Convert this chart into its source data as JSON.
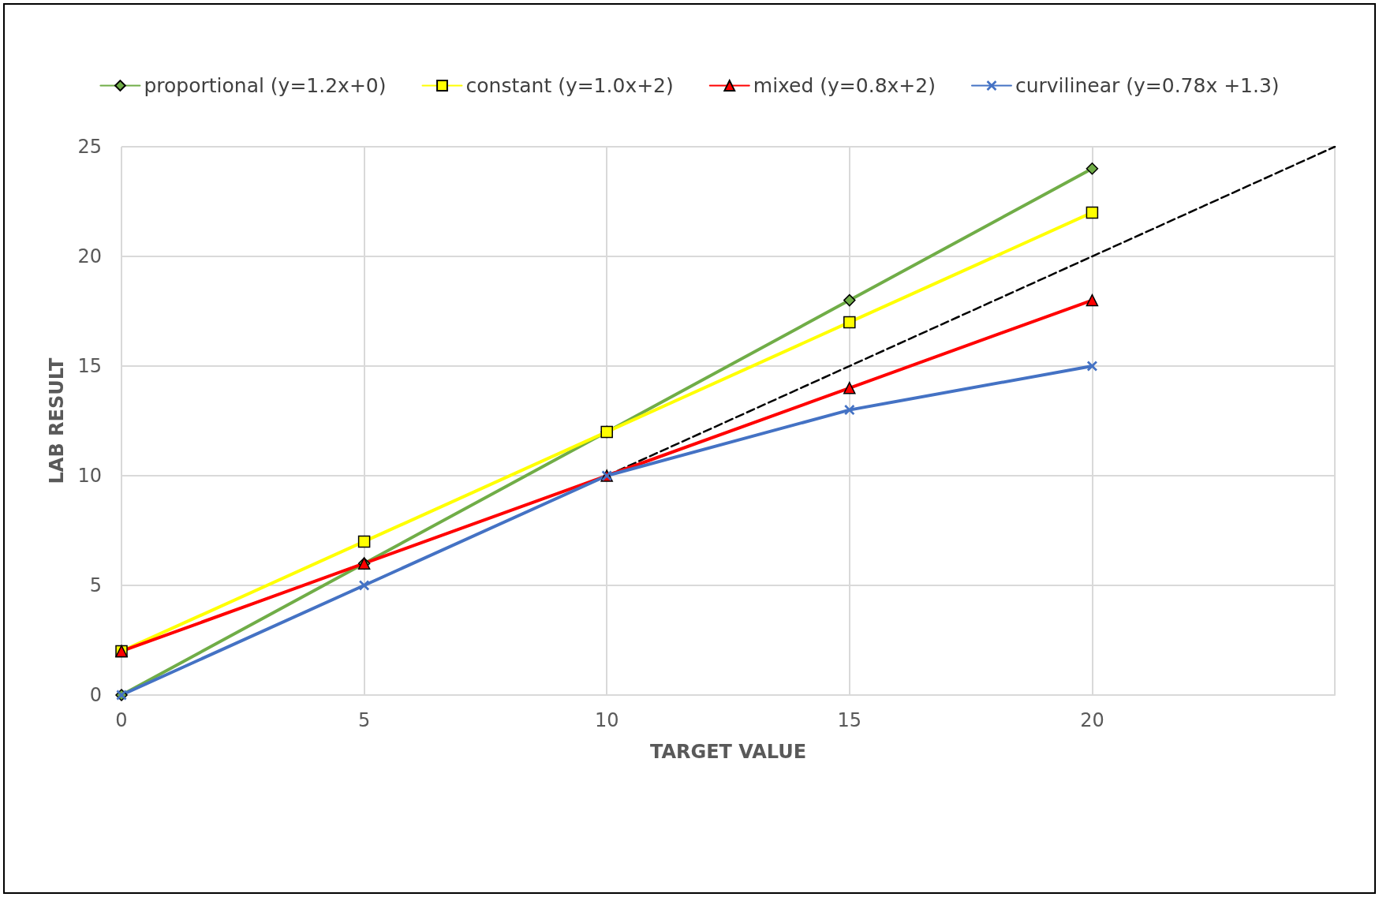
{
  "chart_data": {
    "type": "line",
    "xlabel": "TARGET VALUE",
    "ylabel": "LAB RESULT",
    "x": [
      0,
      5,
      10,
      15,
      20
    ],
    "series": [
      {
        "name": "proportional (y=1.2x+0)",
        "color": "#70ad47",
        "marker": "diamond",
        "values": [
          0,
          6,
          12,
          18,
          24
        ]
      },
      {
        "name": "constant (y=1.0x+2)",
        "color": "#ffff00",
        "marker": "square",
        "values": [
          2,
          7,
          12,
          17,
          22
        ]
      },
      {
        "name": "mixed (y=0.8x+2)",
        "color": "#ff0000",
        "marker": "triangle",
        "values": [
          2,
          6,
          10,
          14,
          18
        ]
      },
      {
        "name": "curvilinear (y=0.78x +1.3)",
        "color": "#4472c4",
        "marker": "cross",
        "values": [
          0,
          5,
          10,
          13,
          15
        ]
      },
      {
        "color": "#000000",
        "marker": "none",
        "line_style": "dashed",
        "x": [
          0,
          25
        ],
        "values": [
          0,
          25
        ]
      }
    ],
    "xlim": [
      0,
      25
    ],
    "xticks": [
      0,
      5,
      10,
      15,
      20,
      {
        "value": 25,
        "label": null
      }
    ],
    "ylim": [
      0,
      25
    ],
    "yticks": [
      0,
      5,
      10,
      15,
      20,
      25
    ],
    "grid": true,
    "legend": "top"
  }
}
